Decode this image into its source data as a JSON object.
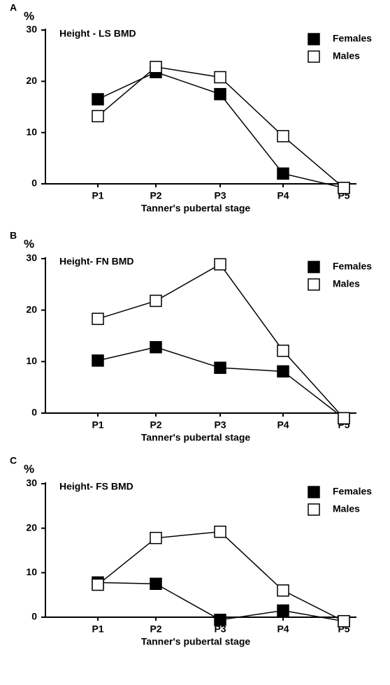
{
  "chart_data": [
    {
      "type": "line",
      "panel_label": "A",
      "ylabel": "%",
      "title": "Height - LS BMD",
      "xlabel": "Tanner's pubertal stage",
      "categories": [
        "P1",
        "P2",
        "P3",
        "P4",
        "P5"
      ],
      "series": [
        {
          "name": "Females",
          "color": "#000000",
          "values": [
            16.5,
            21.8,
            17.5,
            2,
            -0.8
          ]
        },
        {
          "name": "Males",
          "color": "#ffffff",
          "values": [
            13.2,
            22.8,
            20.8,
            9.3,
            -0.8
          ]
        }
      ],
      "ylim": [
        0,
        30
      ],
      "yticks": [
        0,
        10,
        20,
        30
      ]
    },
    {
      "type": "line",
      "panel_label": "B",
      "ylabel": "%",
      "title": "Height- FN BMD",
      "xlabel": "Tanner's pubertal stage",
      "categories": [
        "P1",
        "P2",
        "P3",
        "P4",
        "P5"
      ],
      "series": [
        {
          "name": "Females",
          "color": "#000000",
          "values": [
            10.2,
            12.8,
            8.8,
            8.1,
            -1
          ]
        },
        {
          "name": "Males",
          "color": "#ffffff",
          "values": [
            18.3,
            21.8,
            28.9,
            12.1,
            -1
          ]
        }
      ],
      "ylim": [
        0,
        30
      ],
      "yticks": [
        0,
        10,
        20,
        30
      ]
    },
    {
      "type": "line",
      "panel_label": "C",
      "ylabel": "%",
      "title": "Height- FS BMD",
      "xlabel": "Tanner's pubertal stage",
      "categories": [
        "P1",
        "P2",
        "P3",
        "P4",
        "P5"
      ],
      "series": [
        {
          "name": "Females",
          "color": "#000000",
          "values": [
            7.8,
            7.5,
            -0.6,
            1.5,
            -0.9
          ]
        },
        {
          "name": "Males",
          "color": "#ffffff",
          "values": [
            7.3,
            17.8,
            19.2,
            6,
            -0.9
          ]
        }
      ],
      "ylim": [
        0,
        30
      ],
      "yticks": [
        0,
        10,
        20,
        30
      ]
    }
  ]
}
